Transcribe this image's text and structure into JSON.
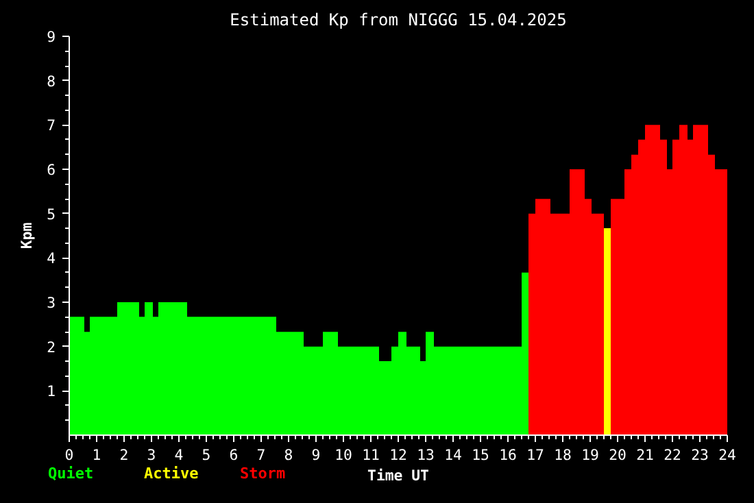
{
  "chart_data": {
    "type": "histogram",
    "title": "Estimated Kp from NIGGG 15.04.2025",
    "xlabel": "Time UT",
    "ylabel": "Kpm",
    "bins": [
      0,
      0.55,
      0.75,
      1.75,
      2.55,
      2.75,
      3.05,
      3.25,
      4.3,
      7.55,
      8.55,
      9.25,
      9.8,
      11.3,
      11.75,
      12.0,
      12.3,
      12.8,
      13.0,
      13.3,
      16.5,
      16.75,
      17.0,
      17.55,
      18.25,
      18.8,
      19.05,
      19.5,
      19.75,
      20.25,
      20.5,
      20.75,
      21.0,
      21.55,
      21.8,
      22.0,
      22.25,
      22.55,
      22.75,
      23.3,
      23.55,
      24
    ],
    "series": [
      {
        "name": "Quiet",
        "color": "#00ff00",
        "values": [
          2.67,
          2.33,
          2.67,
          3,
          2.67,
          3,
          2.67,
          3,
          2.67,
          2.33,
          2.0,
          2.33,
          2.0,
          1.67,
          2.0,
          2.33,
          2.0,
          1.67,
          2.33,
          2.0,
          3.67,
          null,
          null,
          null,
          null,
          null,
          null,
          null,
          null,
          null,
          null,
          null,
          null,
          null,
          null,
          null,
          null,
          null,
          null,
          null,
          null
        ]
      },
      {
        "name": "Active",
        "color": "#ffff00",
        "values": [
          null,
          null,
          null,
          null,
          null,
          null,
          null,
          null,
          null,
          null,
          null,
          null,
          null,
          null,
          null,
          null,
          null,
          null,
          null,
          null,
          null,
          null,
          null,
          null,
          null,
          null,
          null,
          4.67,
          null,
          null,
          null,
          null,
          null,
          null,
          null,
          null,
          null,
          null,
          null,
          null,
          null
        ]
      },
      {
        "name": "Storm",
        "color": "#ff0000",
        "values": [
          null,
          null,
          null,
          null,
          null,
          null,
          null,
          null,
          null,
          null,
          null,
          null,
          null,
          null,
          null,
          null,
          null,
          null,
          null,
          null,
          null,
          5.0,
          5.33,
          5.0,
          6.0,
          5.33,
          5.0,
          null,
          5.33,
          6.0,
          6.33,
          6.67,
          7.0,
          6.67,
          6.0,
          6.67,
          7.0,
          6.67,
          7.0,
          6.33,
          6.0
        ]
      }
    ],
    "xlim": [
      0,
      24
    ],
    "ylim": [
      0,
      9
    ],
    "xticks": [
      0,
      1,
      2,
      3,
      4,
      5,
      6,
      7,
      8,
      9,
      10,
      11,
      12,
      13,
      14,
      15,
      16,
      17,
      18,
      19,
      20,
      21,
      22,
      23,
      24,
      {
        "value": 0.25,
        "label": null
      },
      {
        "value": 0.5,
        "label": null
      },
      {
        "value": 0.75,
        "label": null
      },
      {
        "value": 1.25,
        "label": null
      },
      {
        "value": 1.5,
        "label": null
      },
      {
        "value": 1.75,
        "label": null
      },
      {
        "value": 2.25,
        "label": null
      },
      {
        "value": 2.5,
        "label": null
      },
      {
        "value": 2.75,
        "label": null
      },
      {
        "value": 3.25,
        "label": null
      },
      {
        "value": 3.5,
        "label": null
      },
      {
        "value": 3.75,
        "label": null
      },
      {
        "value": 4.25,
        "label": null
      },
      {
        "value": 4.5,
        "label": null
      },
      {
        "value": 4.75,
        "label": null
      },
      {
        "value": 5.25,
        "label": null
      },
      {
        "value": 5.5,
        "label": null
      },
      {
        "value": 5.75,
        "label": null
      },
      {
        "value": 6.25,
        "label": null
      },
      {
        "value": 6.5,
        "label": null
      },
      {
        "value": 6.75,
        "label": null
      },
      {
        "value": 7.25,
        "label": null
      },
      {
        "value": 7.5,
        "label": null
      },
      {
        "value": 7.75,
        "label": null
      },
      {
        "value": 8.25,
        "label": null
      },
      {
        "value": 8.5,
        "label": null
      },
      {
        "value": 8.75,
        "label": null
      },
      {
        "value": 9.25,
        "label": null
      },
      {
        "value": 9.5,
        "label": null
      },
      {
        "value": 9.75,
        "label": null
      },
      {
        "value": 10.25,
        "label": null
      },
      {
        "value": 10.5,
        "label": null
      },
      {
        "value": 10.75,
        "label": null
      },
      {
        "value": 11.25,
        "label": null
      },
      {
        "value": 11.5,
        "label": null
      },
      {
        "value": 11.75,
        "label": null
      },
      {
        "value": 12.25,
        "label": null
      },
      {
        "value": 12.5,
        "label": null
      },
      {
        "value": 12.75,
        "label": null
      },
      {
        "value": 13.25,
        "label": null
      },
      {
        "value": 13.5,
        "label": null
      },
      {
        "value": 13.75,
        "label": null
      },
      {
        "value": 14.25,
        "label": null
      },
      {
        "value": 14.5,
        "label": null
      },
      {
        "value": 14.75,
        "label": null
      },
      {
        "value": 15.25,
        "label": null
      },
      {
        "value": 15.5,
        "label": null
      },
      {
        "value": 15.75,
        "label": null
      },
      {
        "value": 16.25,
        "label": null
      },
      {
        "value": 16.5,
        "label": null
      },
      {
        "value": 16.75,
        "label": null
      },
      {
        "value": 17.25,
        "label": null
      },
      {
        "value": 17.5,
        "label": null
      },
      {
        "value": 17.75,
        "label": null
      },
      {
        "value": 18.25,
        "label": null
      },
      {
        "value": 18.5,
        "label": null
      },
      {
        "value": 18.75,
        "label": null
      },
      {
        "value": 19.25,
        "label": null
      },
      {
        "value": 19.5,
        "label": null
      },
      {
        "value": 19.75,
        "label": null
      },
      {
        "value": 20.25,
        "label": null
      },
      {
        "value": 20.5,
        "label": null
      },
      {
        "value": 20.75,
        "label": null
      },
      {
        "value": 21.25,
        "label": null
      },
      {
        "value": 21.5,
        "label": null
      },
      {
        "value": 21.75,
        "label": null
      },
      {
        "value": 22.25,
        "label": null
      },
      {
        "value": 22.5,
        "label": null
      },
      {
        "value": 22.75,
        "label": null
      },
      {
        "value": 23.25,
        "label": null
      },
      {
        "value": 23.5,
        "label": null
      },
      {
        "value": 23.75,
        "label": null
      }
    ],
    "yticks": [
      1,
      2,
      3,
      4,
      5,
      6,
      7,
      8,
      9,
      {
        "value": 0.33,
        "label": null
      },
      {
        "value": 0.67,
        "label": null
      },
      {
        "value": 1.33,
        "label": null
      },
      {
        "value": 1.67,
        "label": null
      },
      {
        "value": 2.33,
        "label": null
      },
      {
        "value": 2.67,
        "label": null
      },
      {
        "value": 3.33,
        "label": null
      },
      {
        "value": 3.67,
        "label": null
      },
      {
        "value": 4.33,
        "label": null
      },
      {
        "value": 4.67,
        "label": null
      },
      {
        "value": 5.33,
        "label": null
      },
      {
        "value": 5.67,
        "label": null
      },
      {
        "value": 6.33,
        "label": null
      },
      {
        "value": 6.67,
        "label": null
      },
      {
        "value": 7.33,
        "label": null
      },
      {
        "value": 7.67,
        "label": null
      },
      {
        "value": 8.33,
        "label": null
      },
      {
        "value": 8.67,
        "label": null
      }
    ],
    "grid": false
  }
}
